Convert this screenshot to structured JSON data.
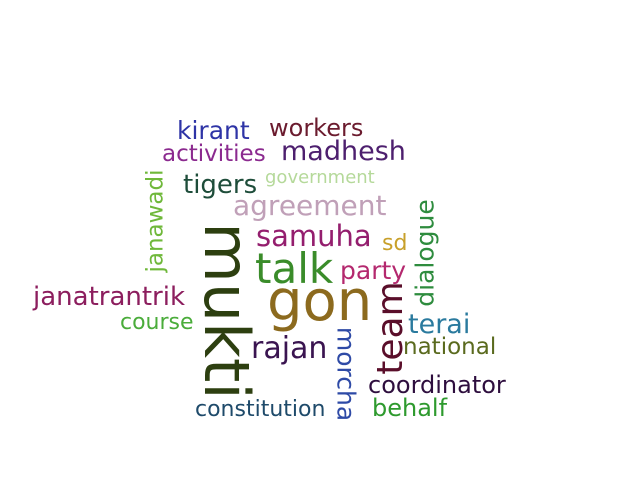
{
  "words": [
    {
      "text": "kirant",
      "color": "#2e34a6"
    },
    {
      "text": "workers",
      "color": "#6b1b2e"
    },
    {
      "text": "activities",
      "color": "#8b2a8f"
    },
    {
      "text": "madhesh",
      "color": "#4d1f6e"
    },
    {
      "text": "janawadi",
      "color": "#6fb83a"
    },
    {
      "text": "tigers",
      "color": "#1e4d3a"
    },
    {
      "text": "government",
      "color": "#b5d99a"
    },
    {
      "text": "agreement",
      "color": "#c0a0b8"
    },
    {
      "text": "mukti",
      "color": "#2d3f10"
    },
    {
      "text": "samuha",
      "color": "#941e6e"
    },
    {
      "text": "sd",
      "color": "#c8a02a"
    },
    {
      "text": "dialogue",
      "color": "#2e8c3e"
    },
    {
      "text": "talk",
      "color": "#3a8c2a"
    },
    {
      "text": "party",
      "color": "#b4286e"
    },
    {
      "text": "janatrantrik",
      "color": "#8c1e5e"
    },
    {
      "text": "gon",
      "color": "#8c6a1e"
    },
    {
      "text": "course",
      "color": "#4aac3a"
    },
    {
      "text": "team",
      "color": "#5a0e2a"
    },
    {
      "text": "terai",
      "color": "#2a7a9e"
    },
    {
      "text": "morcha",
      "color": "#2e4aa6"
    },
    {
      "text": "rajan",
      "color": "#3a1450"
    },
    {
      "text": "national",
      "color": "#5a6a1e"
    },
    {
      "text": "coordinator",
      "color": "#2e0e3e"
    },
    {
      "text": "constitution",
      "color": "#1e4a6a"
    },
    {
      "text": "behalf",
      "color": "#2e9a2e"
    }
  ]
}
